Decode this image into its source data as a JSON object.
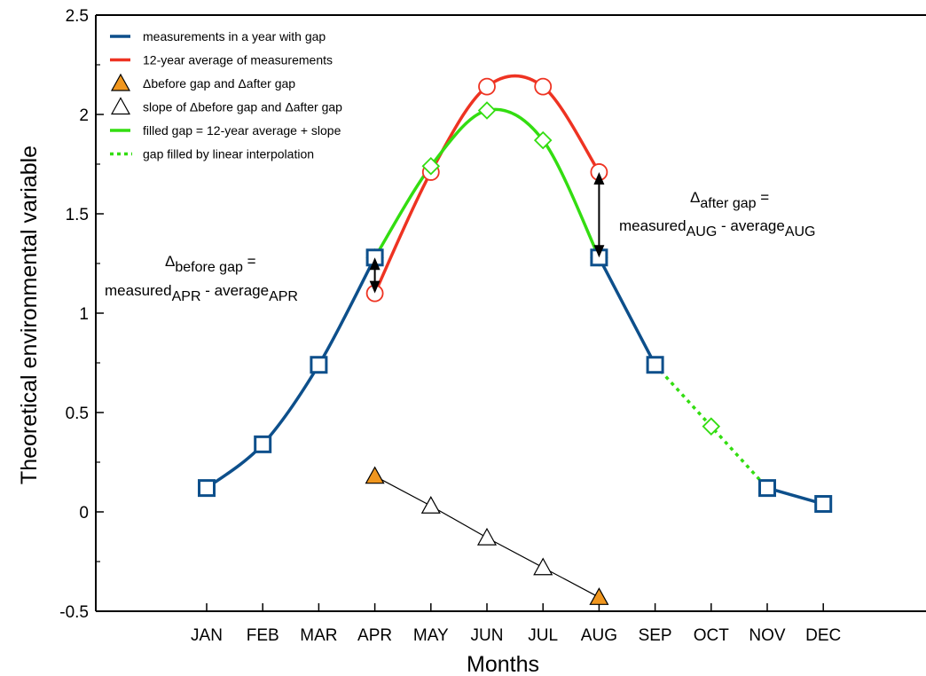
{
  "chart_data": {
    "type": "line",
    "xlabel": "Months",
    "ylabel": "Theoretical environmental variable",
    "ylim": [
      -0.5,
      2.5
    ],
    "yticks": [
      "2.5",
      "2",
      "1.5",
      "1",
      "0.5",
      "0",
      "-0.5"
    ],
    "categories": [
      "JAN",
      "FEB",
      "MAR",
      "APR",
      "MAY",
      "JUN",
      "JUL",
      "AUG",
      "SEP",
      "OCT",
      "NOV",
      "DEC"
    ],
    "grid": false,
    "legend_position": "top-left",
    "series": [
      {
        "name": "measurements in a year with gap",
        "color": "#0d4f8b",
        "marker": "square",
        "style": "solid-smooth",
        "points": [
          {
            "x": "JAN",
            "y": 0.12
          },
          {
            "x": "FEB",
            "y": 0.34
          },
          {
            "x": "MAR",
            "y": 0.74
          },
          {
            "x": "APR",
            "y": 1.28
          },
          {
            "x": "AUG",
            "y": 1.28
          },
          {
            "x": "SEP",
            "y": 0.74
          },
          {
            "x": "NOV",
            "y": 0.12
          },
          {
            "x": "DEC",
            "y": 0.04
          }
        ]
      },
      {
        "name": "12-year average of measurements",
        "color": "#ee3322",
        "marker": "circle",
        "style": "solid-smooth",
        "points": [
          {
            "x": "APR",
            "y": 1.1
          },
          {
            "x": "MAY",
            "y": 1.71
          },
          {
            "x": "JUN",
            "y": 2.14
          },
          {
            "x": "JUL",
            "y": 2.14
          },
          {
            "x": "AUG",
            "y": 1.71
          }
        ]
      },
      {
        "name": "Δbefore gap and Δafter gap",
        "color": "#f0961e",
        "marker": "triangle-filled",
        "style": "markers",
        "points": [
          {
            "x": "APR",
            "y": 0.18
          },
          {
            "x": "AUG",
            "y": -0.43
          }
        ]
      },
      {
        "name": "slope of Δbefore gap and Δafter gap",
        "color": "#000000",
        "marker": "triangle-open",
        "style": "thin-line",
        "points": [
          {
            "x": "APR",
            "y": 0.18
          },
          {
            "x": "MAY",
            "y": 0.03
          },
          {
            "x": "JUN",
            "y": -0.13
          },
          {
            "x": "JUL",
            "y": -0.28
          },
          {
            "x": "AUG",
            "y": -0.43
          }
        ]
      },
      {
        "name": "filled gap = 12-year average + slope",
        "color": "#33dd11",
        "marker": "diamond",
        "style": "solid-smooth",
        "points": [
          {
            "x": "APR",
            "y": 1.28
          },
          {
            "x": "MAY",
            "y": 1.74
          },
          {
            "x": "JUN",
            "y": 2.02
          },
          {
            "x": "JUL",
            "y": 1.87
          },
          {
            "x": "AUG",
            "y": 1.28
          }
        ]
      },
      {
        "name": "gap filled by linear interpolation",
        "color": "#33dd11",
        "marker": "diamond",
        "style": "dotted",
        "points": [
          {
            "x": "SEP",
            "y": 0.74
          },
          {
            "x": "OCT",
            "y": 0.43
          },
          {
            "x": "NOV",
            "y": 0.12
          }
        ]
      }
    ],
    "arrows": [
      {
        "x": "APR",
        "from": 1.28,
        "to": 1.1
      },
      {
        "x": "AUG",
        "from": 1.71,
        "to": 1.28
      }
    ],
    "annotations": [
      {
        "id": "before",
        "delta": "Δ",
        "delta_sub": "before gap",
        "delta_tail": " =",
        "line2": "measured",
        "line2_sub1": "APR",
        "line2_mid": " - average",
        "line2_sub2": "APR"
      },
      {
        "id": "after",
        "delta": "Δ",
        "delta_sub": "after gap",
        "delta_tail": " =",
        "line2": "measured",
        "line2_sub1": "AUG",
        "line2_mid": " - average",
        "line2_sub2": "AUG"
      }
    ]
  }
}
